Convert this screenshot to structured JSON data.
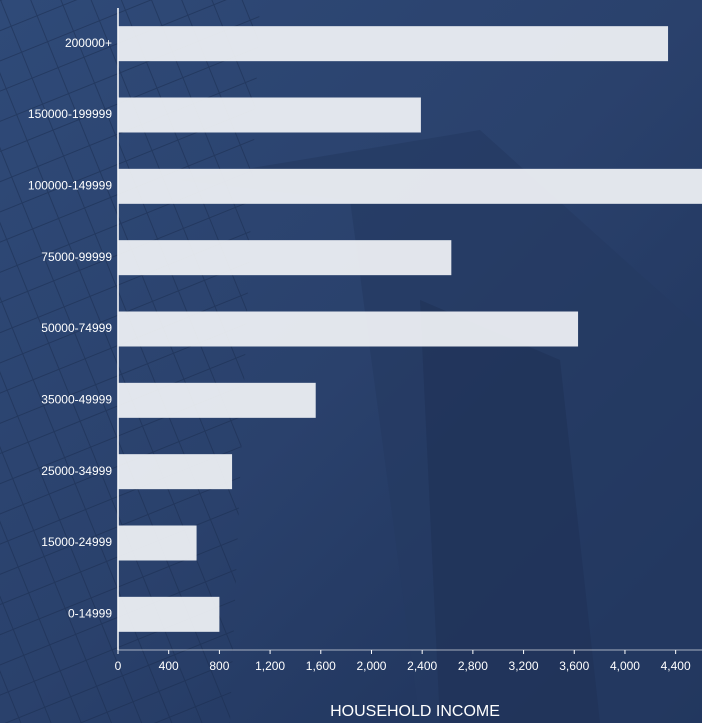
{
  "chart_data": {
    "type": "bar",
    "orientation": "horizontal",
    "x_label": "HOUSEHOLD INCOME",
    "categories": [
      "200000+",
      "150000-199999",
      "100000-149999",
      "75000-99999",
      "50000-74999",
      "35000-49999",
      "25000-34999",
      "15000-24999",
      "0-14999"
    ],
    "values": [
      4340,
      2390,
      4700,
      2630,
      3630,
      1560,
      900,
      620,
      800
    ],
    "color": "#f2f4f7",
    "xlim": [
      0,
      4600
    ],
    "xticks": [
      0,
      400,
      800,
      {
        "value": 1200,
        "label": "1,200"
      },
      {
        "value": 1600,
        "label": "1,600"
      },
      {
        "value": 2000,
        "label": "2,000"
      },
      {
        "value": 2400,
        "label": "2,400"
      },
      {
        "value": 2800,
        "label": "2,800"
      },
      {
        "value": 3200,
        "label": "3,200"
      },
      {
        "value": 3600,
        "label": "3,600"
      },
      {
        "value": 4000,
        "label": "4,000"
      },
      {
        "value": 4400,
        "label": "4,400"
      }
    ]
  }
}
